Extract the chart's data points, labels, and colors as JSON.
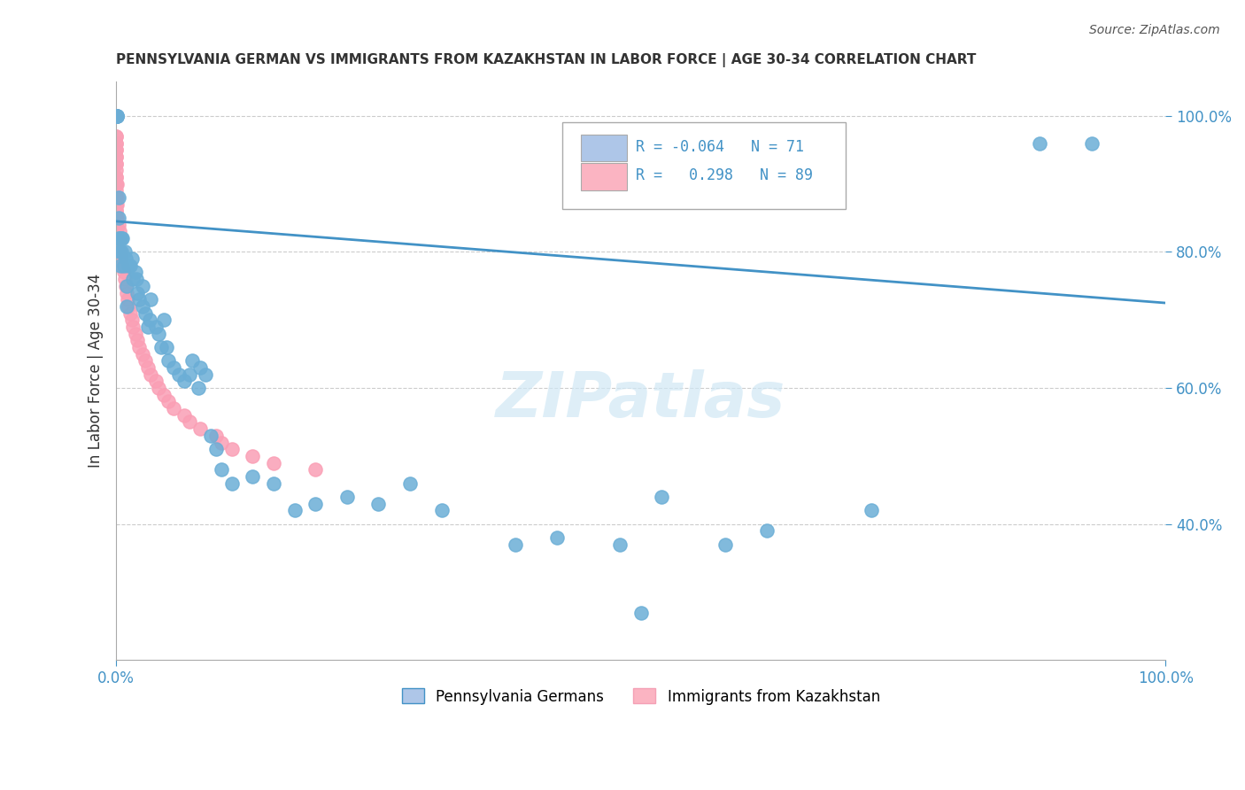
{
  "title": "PENNSYLVANIA GERMAN VS IMMIGRANTS FROM KAZAKHSTAN IN LABOR FORCE | AGE 30-34 CORRELATION CHART",
  "source_text": "Source: ZipAtlas.com",
  "xlabel": "",
  "ylabel": "In Labor Force | Age 30-34",
  "xmin": 0.0,
  "xmax": 1.0,
  "ymin": 0.2,
  "ymax": 1.05,
  "xtick_labels": [
    "0.0%",
    "100.0%"
  ],
  "ytick_labels": [
    "40.0%",
    "60.0%",
    "80.0%",
    "100.0%"
  ],
  "ytick_values": [
    0.4,
    0.6,
    0.8,
    1.0
  ],
  "grid_color": "#cccccc",
  "background_color": "#ffffff",
  "blue_color": "#6baed6",
  "pink_color": "#fa9fb5",
  "blue_line_color": "#4292c6",
  "legend_box_blue": "#aec6e8",
  "legend_box_pink": "#fbb4c2",
  "watermark": "ZIPatlas",
  "legend_R_blue": "-0.064",
  "legend_N_blue": "71",
  "legend_R_pink": "0.298",
  "legend_N_pink": "89",
  "blue_scatter_x": [
    0.0,
    0.0,
    0.0,
    0.001,
    0.001,
    0.001,
    0.001,
    0.002,
    0.002,
    0.002,
    0.003,
    0.003,
    0.004,
    0.005,
    0.005,
    0.006,
    0.007,
    0.008,
    0.009,
    0.01,
    0.01,
    0.012,
    0.013,
    0.015,
    0.016,
    0.018,
    0.019,
    0.02,
    0.022,
    0.025,
    0.025,
    0.028,
    0.03,
    0.032,
    0.033,
    0.038,
    0.04,
    0.043,
    0.045,
    0.048,
    0.05,
    0.055,
    0.06,
    0.065,
    0.07,
    0.072,
    0.078,
    0.08,
    0.085,
    0.09,
    0.095,
    0.1,
    0.11,
    0.13,
    0.15,
    0.17,
    0.19,
    0.22,
    0.25,
    0.28,
    0.31,
    0.38,
    0.42,
    0.48,
    0.5,
    0.52,
    0.58,
    0.62,
    0.72,
    0.88,
    0.93
  ],
  "blue_scatter_y": [
    1.0,
    1.0,
    1.0,
    1.0,
    1.0,
    1.0,
    1.0,
    0.88,
    0.85,
    0.82,
    0.8,
    0.82,
    0.78,
    0.8,
    0.82,
    0.82,
    0.78,
    0.8,
    0.79,
    0.75,
    0.72,
    0.78,
    0.78,
    0.79,
    0.76,
    0.77,
    0.76,
    0.74,
    0.73,
    0.72,
    0.75,
    0.71,
    0.69,
    0.7,
    0.73,
    0.69,
    0.68,
    0.66,
    0.7,
    0.66,
    0.64,
    0.63,
    0.62,
    0.61,
    0.62,
    0.64,
    0.6,
    0.63,
    0.62,
    0.53,
    0.51,
    0.48,
    0.46,
    0.47,
    0.46,
    0.42,
    0.43,
    0.44,
    0.43,
    0.46,
    0.42,
    0.37,
    0.38,
    0.37,
    0.27,
    0.44,
    0.37,
    0.39,
    0.42,
    0.96,
    0.96
  ],
  "pink_scatter_x": [
    0.0,
    0.0,
    0.0,
    0.0,
    0.0,
    0.0,
    0.0,
    0.0,
    0.0,
    0.0,
    0.0,
    0.0,
    0.0,
    0.0,
    0.0,
    0.0,
    0.0,
    0.0,
    0.0,
    0.0,
    0.0,
    0.0,
    0.0,
    0.0,
    0.0,
    0.0,
    0.0,
    0.0,
    0.0,
    0.0,
    0.0,
    0.0,
    0.0,
    0.0,
    0.0,
    0.0,
    0.0,
    0.0,
    0.0,
    0.0,
    0.0,
    0.0,
    0.0,
    0.0,
    0.0,
    0.0,
    0.0,
    0.0,
    0.001,
    0.001,
    0.001,
    0.001,
    0.002,
    0.002,
    0.003,
    0.003,
    0.004,
    0.005,
    0.006,
    0.007,
    0.008,
    0.009,
    0.01,
    0.011,
    0.012,
    0.013,
    0.015,
    0.016,
    0.018,
    0.02,
    0.022,
    0.025,
    0.028,
    0.03,
    0.033,
    0.038,
    0.04,
    0.045,
    0.05,
    0.055,
    0.065,
    0.07,
    0.08,
    0.095,
    0.1,
    0.11,
    0.13,
    0.15,
    0.19
  ],
  "pink_scatter_y": [
    1.0,
    1.0,
    1.0,
    1.0,
    1.0,
    1.0,
    1.0,
    1.0,
    1.0,
    1.0,
    1.0,
    1.0,
    1.0,
    1.0,
    1.0,
    1.0,
    1.0,
    0.97,
    0.97,
    0.96,
    0.96,
    0.95,
    0.95,
    0.94,
    0.94,
    0.93,
    0.93,
    0.92,
    0.91,
    0.91,
    0.9,
    0.9,
    0.89,
    0.88,
    0.87,
    0.87,
    0.86,
    0.86,
    0.85,
    0.85,
    0.84,
    0.83,
    0.83,
    0.82,
    0.82,
    0.81,
    0.8,
    0.8,
    0.9,
    0.88,
    0.87,
    0.85,
    0.84,
    0.82,
    0.83,
    0.82,
    0.8,
    0.79,
    0.78,
    0.77,
    0.76,
    0.75,
    0.74,
    0.73,
    0.72,
    0.71,
    0.7,
    0.69,
    0.68,
    0.67,
    0.66,
    0.65,
    0.64,
    0.63,
    0.62,
    0.61,
    0.6,
    0.59,
    0.58,
    0.57,
    0.56,
    0.55,
    0.54,
    0.53,
    0.52,
    0.51,
    0.5,
    0.49,
    0.48
  ],
  "trend_x_start": 0.0,
  "trend_x_end": 1.0,
  "trend_y_start": 0.845,
  "trend_y_end": 0.725
}
